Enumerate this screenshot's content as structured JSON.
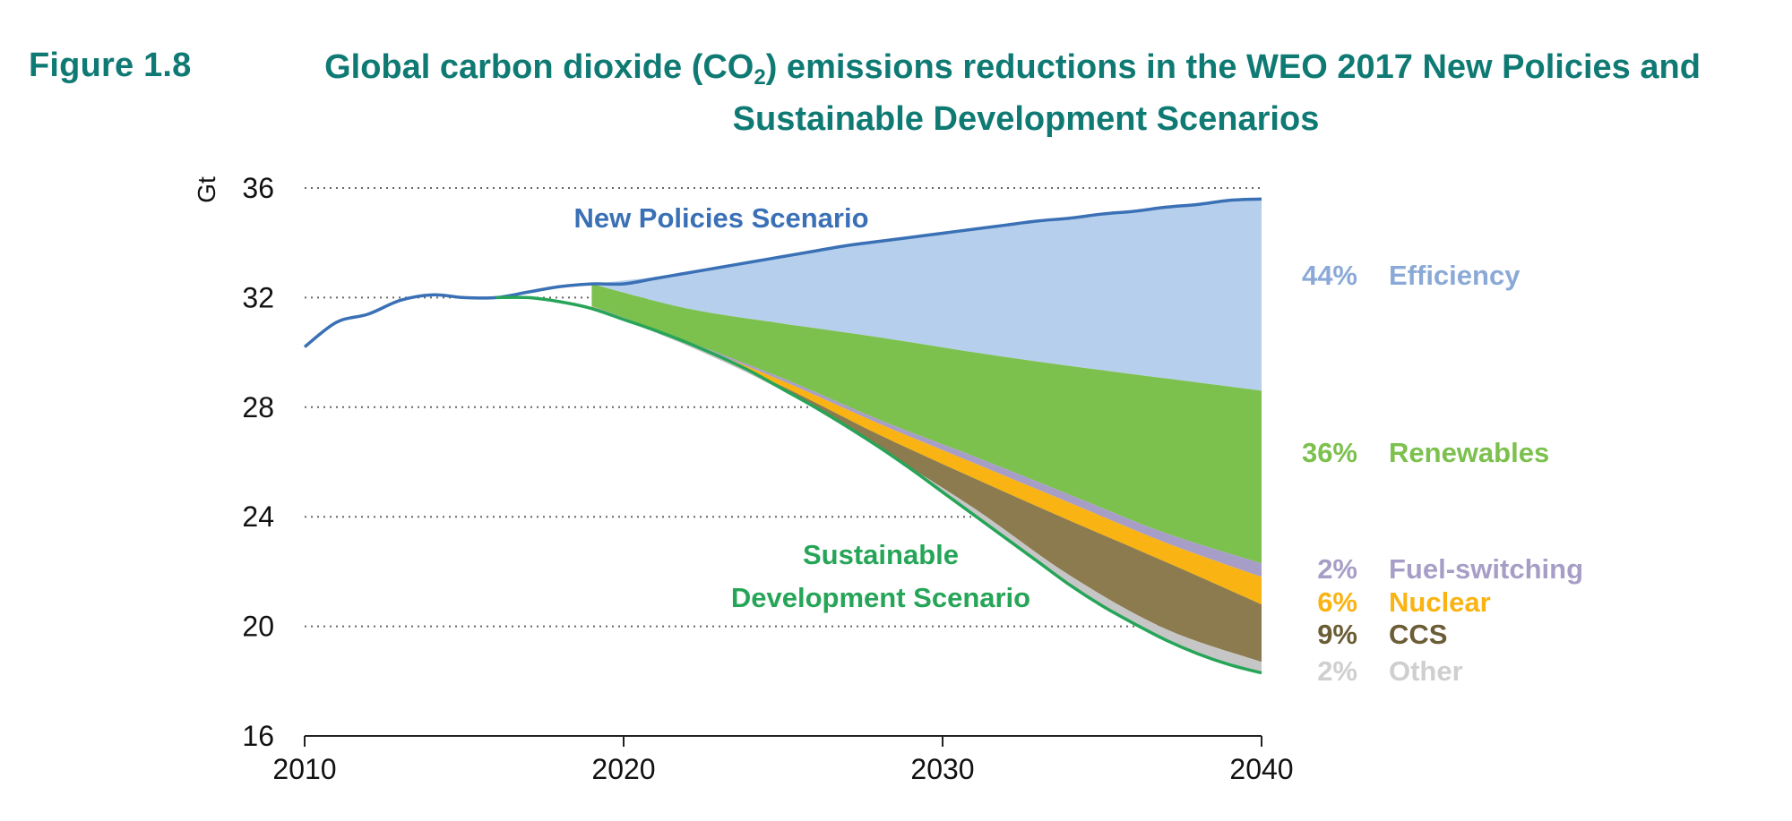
{
  "figure": {
    "label": "Figure 1.8",
    "title_prefix": "Global carbon dioxide (CO",
    "title_sub": "2",
    "title_suffix": ") emissions reductions in the WEO 2017 New Policies and",
    "title_line2": "Sustainable Development Scenarios"
  },
  "chart_data": {
    "type": "area",
    "ylabel": "Gt",
    "xlabel": "",
    "xlim": [
      2010,
      2040
    ],
    "ylim": [
      16,
      36
    ],
    "x_ticks": [
      2010,
      2020,
      2030,
      2040
    ],
    "y_ticks": [
      16,
      20,
      24,
      28,
      32,
      36
    ],
    "grid": "horizontal dotted",
    "colors": {
      "new_policies_line": "#3a70b5",
      "sds_line": "#26a558",
      "efficiency": "#b6cfec",
      "renewables": "#7cc04d",
      "fuel_switching": "#a79ec7",
      "nuclear": "#f9b313",
      "ccs": "#8b7b4e",
      "other": "#c6c6c6"
    },
    "x": [
      2010,
      2011,
      2012,
      2013,
      2014,
      2015,
      2016,
      2017,
      2018,
      2019,
      2020,
      2021,
      2022,
      2023,
      2024,
      2025,
      2026,
      2027,
      2028,
      2029,
      2030,
      2031,
      2032,
      2033,
      2034,
      2035,
      2036,
      2037,
      2038,
      2039,
      2040
    ],
    "series": [
      {
        "name": "New Policies Scenario",
        "values": [
          30.2,
          31.1,
          31.4,
          31.9,
          32.1,
          32.0,
          32.0,
          32.2,
          32.4,
          32.5,
          32.5,
          32.7,
          32.9,
          33.1,
          33.3,
          33.5,
          33.7,
          33.9,
          34.05,
          34.2,
          34.35,
          34.5,
          34.65,
          34.8,
          34.9,
          35.05,
          35.15,
          35.3,
          35.4,
          35.55,
          35.6
        ]
      },
      {
        "name": "Sustainable Development Scenario",
        "values": [
          30.2,
          31.1,
          31.4,
          31.9,
          32.1,
          32.0,
          32.0,
          32.0,
          31.85,
          31.6,
          31.2,
          30.8,
          30.35,
          29.85,
          29.3,
          28.65,
          28.0,
          27.3,
          26.55,
          25.75,
          24.9,
          24.05,
          23.2,
          22.35,
          21.5,
          20.75,
          20.1,
          19.5,
          19.0,
          18.6,
          18.3
        ]
      }
    ],
    "wedges": {
      "x": [
        2019,
        2022,
        2025,
        2028,
        2031,
        2034,
        2037,
        2040
      ],
      "efficiency_bottom": [
        32.5,
        31.6,
        31.05,
        30.55,
        30.0,
        29.5,
        29.05,
        28.6
      ],
      "renewables_bottom": [
        31.7,
        30.4,
        29.05,
        27.55,
        26.2,
        24.8,
        23.4,
        22.3
      ],
      "fuel_switching_bottom": [
        31.68,
        30.35,
        28.95,
        27.4,
        25.95,
        24.5,
        23.05,
        21.8
      ],
      "nuclear_bottom": [
        31.66,
        30.3,
        28.75,
        27.0,
        25.4,
        23.85,
        22.35,
        20.8
      ],
      "ccs_bottom": [
        31.62,
        30.25,
        28.6,
        26.5,
        24.3,
        21.85,
        19.9,
        18.7
      ]
    },
    "annotations": [
      {
        "key": "efficiency",
        "pct": "44%",
        "label": "Efficiency",
        "color": "#8aa9d6"
      },
      {
        "key": "renewables",
        "pct": "36%",
        "label": "Renewables",
        "color": "#7cc04d"
      },
      {
        "key": "fuel_switching",
        "pct": "2%",
        "label": "Fuel-switching",
        "color": "#a79ec7"
      },
      {
        "key": "nuclear",
        "pct": "6%",
        "label": "Nuclear",
        "color": "#f9b313"
      },
      {
        "key": "ccs",
        "pct": "9%",
        "label": "CCS",
        "color": "#6b5d36"
      },
      {
        "key": "other",
        "pct": "2%",
        "label": "Other",
        "color": "#cfcfcf"
      }
    ],
    "series_labels": {
      "new_policies": "New Policies Scenario",
      "sds_line1": "Sustainable",
      "sds_line2": "Development  Scenario"
    }
  }
}
